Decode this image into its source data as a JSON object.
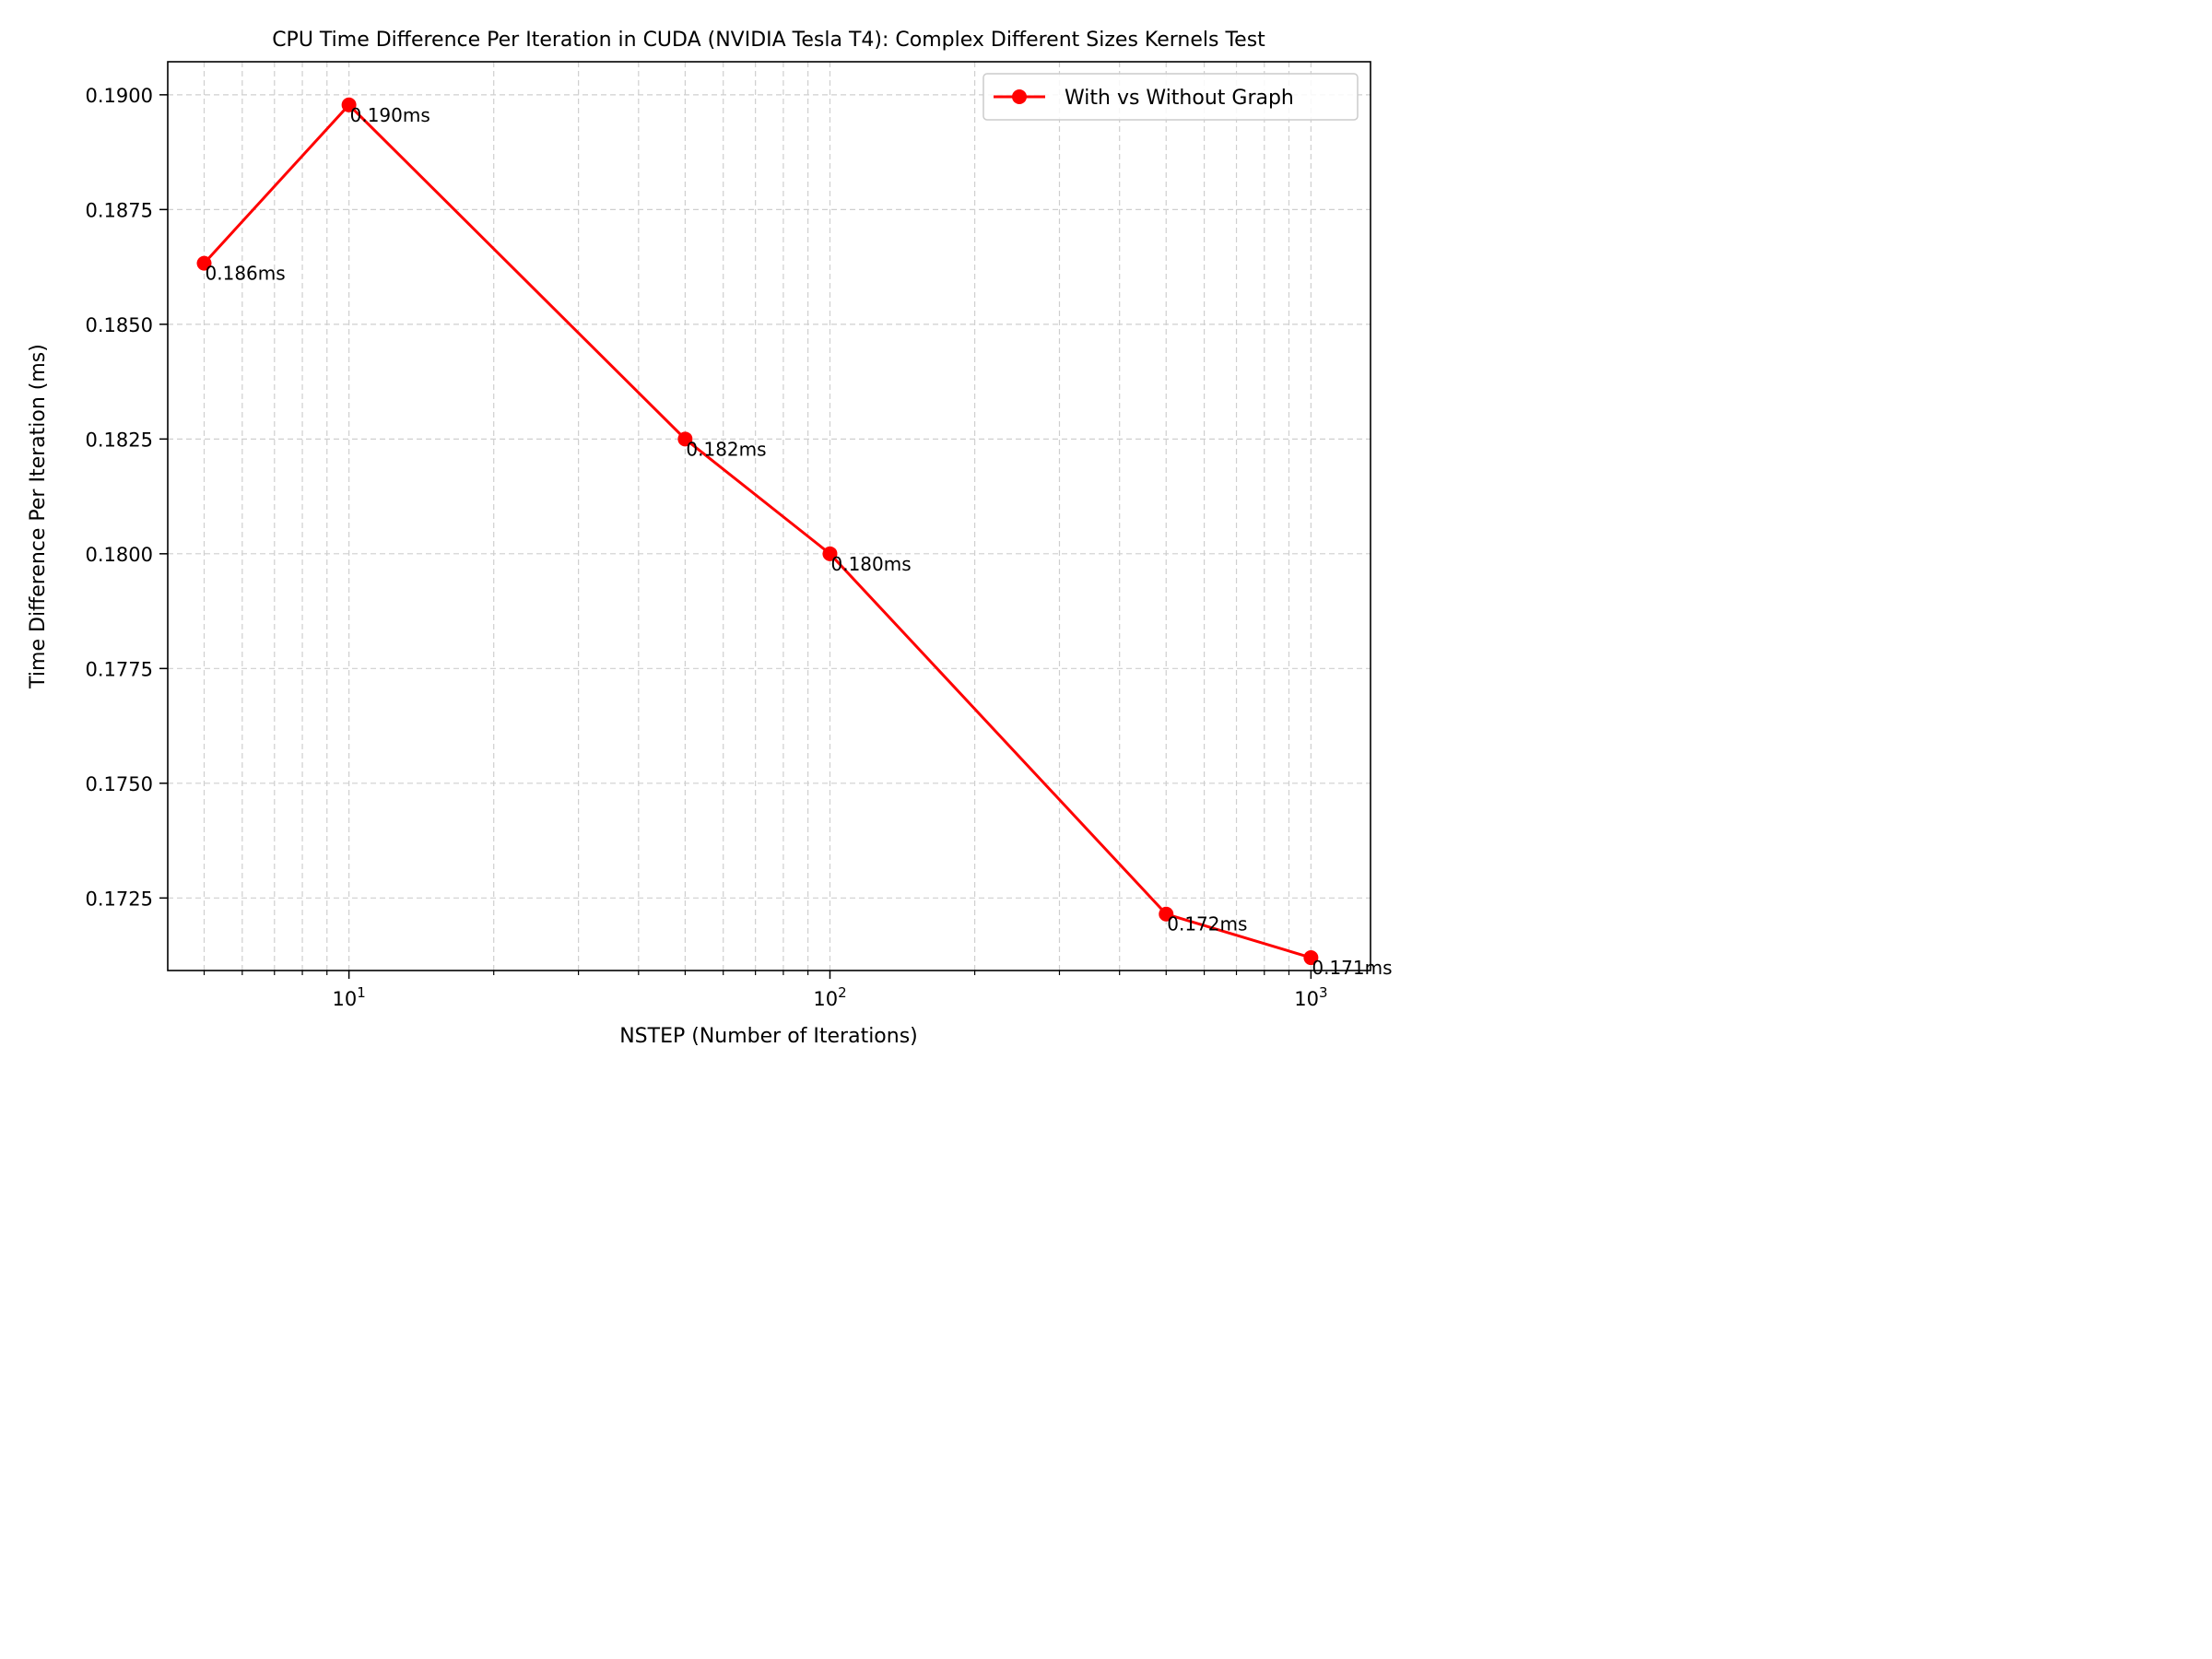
{
  "chart_data": {
    "type": "line",
    "title": "CPU Time Difference Per Iteration in CUDA (NVIDIA Tesla T4): Complex Different Sizes Kernels Test",
    "xlabel": "NSTEP (Number of Iterations)",
    "ylabel": "Time Difference Per Iteration (ms)",
    "x_scale": "log",
    "xlim": [
      4.2,
      1330
    ],
    "ylim": [
      0.17092,
      0.19072
    ],
    "x_ticks": [
      {
        "value": 10,
        "base": "10",
        "exp": "1"
      },
      {
        "value": 100,
        "base": "10",
        "exp": "2"
      },
      {
        "value": 1000,
        "base": "10",
        "exp": "3"
      }
    ],
    "y_ticks": [
      {
        "value": 0.1725,
        "label": "0.1725"
      },
      {
        "value": 0.175,
        "label": "0.1750"
      },
      {
        "value": 0.1775,
        "label": "0.1775"
      },
      {
        "value": 0.18,
        "label": "0.1800"
      },
      {
        "value": 0.1825,
        "label": "0.1825"
      },
      {
        "value": 0.185,
        "label": "0.1850"
      },
      {
        "value": 0.1875,
        "label": "0.1875"
      },
      {
        "value": 0.19,
        "label": "0.1900"
      }
    ],
    "grid": true,
    "legend_position": "top-right",
    "series": [
      {
        "name": "With vs Without Graph",
        "color": "#ff0000",
        "marker": "circle",
        "x": [
          5,
          10,
          50,
          100,
          500,
          1000
        ],
        "y": [
          0.18633,
          0.18978,
          0.1825,
          0.18,
          0.17215,
          0.1712
        ],
        "labels": [
          "0.186ms",
          "0.190ms",
          "0.182ms",
          "0.180ms",
          "0.172ms",
          "0.171ms"
        ]
      }
    ]
  }
}
